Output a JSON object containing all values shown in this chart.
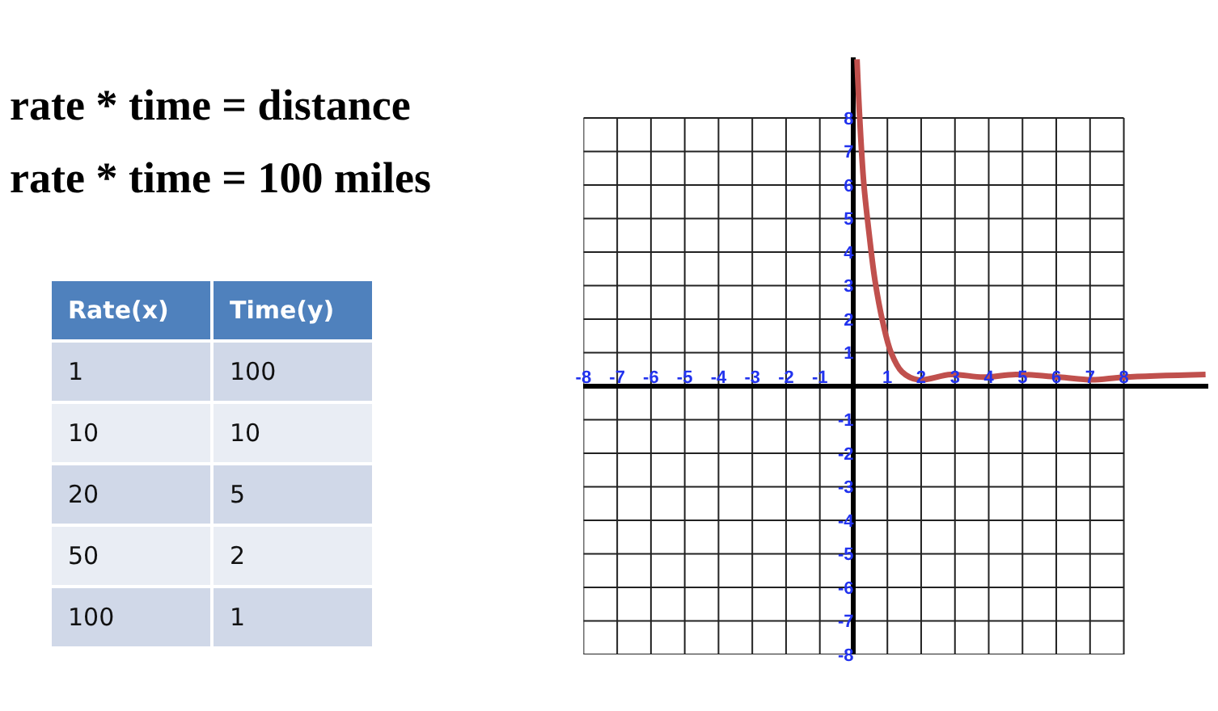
{
  "chart_data": {
    "type": "line",
    "title": "rate * time = distance",
    "subtitle": "rate * time = 100 miles",
    "annotations": [
      "Rate(x)",
      "Time(y)",
      "1",
      "100",
      "10",
      "10",
      "20",
      "5",
      "50",
      "2",
      "100",
      "1"
    ],
    "x": [
      0.1,
      0.18,
      0.3,
      0.47,
      0.63,
      0.87,
      1.11,
      1.43,
      1.91,
      2.88,
      3.84,
      4.8,
      6.09,
      7.05,
      8.01,
      10.42
    ],
    "series": [
      {
        "color": "#c0504d",
        "values": [
          9.75,
          8.0,
          6.06,
          4.45,
          3.17,
          1.88,
          1.0,
          0.43,
          0.19,
          0.35,
          0.27,
          0.35,
          0.27,
          0.19,
          0.27,
          0.35
        ]
      }
    ],
    "xlim": [
      -8,
      10.5
    ],
    "ylim": [
      -8,
      9.8
    ],
    "xticks": [
      -8,
      -7,
      -6,
      -5,
      -4,
      -3,
      -2,
      -1,
      1,
      2,
      3,
      4,
      5,
      6,
      7,
      8
    ],
    "yticks": [
      -8,
      -7,
      -6,
      -5,
      -4,
      -3,
      -2,
      -1,
      1,
      2,
      3,
      4,
      5,
      6,
      7,
      8
    ],
    "grid": true,
    "marker": "none",
    "line_style": "solid"
  }
}
